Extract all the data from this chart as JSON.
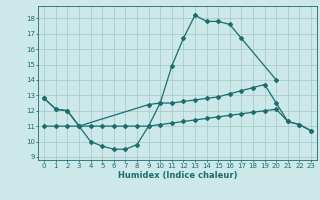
{
  "bg_color": "#cce8e8",
  "grid_color": "#aacccc",
  "line_color": "#1a6e6e",
  "xlabel": "Humidex (Indice chaleur)",
  "xlim": [
    -0.5,
    23.5
  ],
  "ylim": [
    8.8,
    18.8
  ],
  "yticks": [
    9,
    10,
    11,
    12,
    13,
    14,
    15,
    16,
    17,
    18
  ],
  "xticks": [
    0,
    1,
    2,
    3,
    4,
    5,
    6,
    7,
    8,
    9,
    10,
    11,
    12,
    13,
    14,
    15,
    16,
    17,
    18,
    19,
    20,
    21,
    22,
    23
  ],
  "curve1_x": [
    0,
    1,
    2,
    3,
    4,
    5,
    6,
    7,
    8,
    9,
    10,
    11,
    12,
    13,
    14,
    15,
    16,
    17,
    20
  ],
  "curve1_y": [
    12.8,
    12.1,
    12.0,
    11.0,
    10.0,
    9.7,
    9.5,
    9.5,
    9.8,
    11.0,
    12.5,
    14.9,
    16.7,
    18.2,
    17.8,
    17.8,
    17.6,
    16.7,
    14.0
  ],
  "curve2_x": [
    0,
    1,
    2,
    3,
    9,
    10,
    11,
    12,
    13,
    14,
    15,
    16,
    17,
    18,
    19,
    20,
    21,
    22,
    23
  ],
  "curve2_y": [
    12.8,
    12.1,
    12.0,
    11.0,
    12.4,
    12.5,
    12.5,
    12.6,
    12.7,
    12.8,
    12.9,
    13.1,
    13.3,
    13.5,
    13.7,
    12.5,
    11.3,
    11.1,
    10.7
  ],
  "curve3_x": [
    0,
    1,
    2,
    3,
    4,
    5,
    6,
    7,
    8,
    9,
    10,
    11,
    12,
    13,
    14,
    15,
    16,
    17,
    18,
    19,
    20,
    21,
    22,
    23
  ],
  "curve3_y": [
    11.0,
    11.0,
    11.0,
    11.0,
    11.0,
    11.0,
    11.0,
    11.0,
    11.0,
    11.0,
    11.1,
    11.2,
    11.3,
    11.4,
    11.5,
    11.6,
    11.7,
    11.8,
    11.9,
    12.0,
    12.1,
    11.3,
    11.1,
    10.7
  ]
}
